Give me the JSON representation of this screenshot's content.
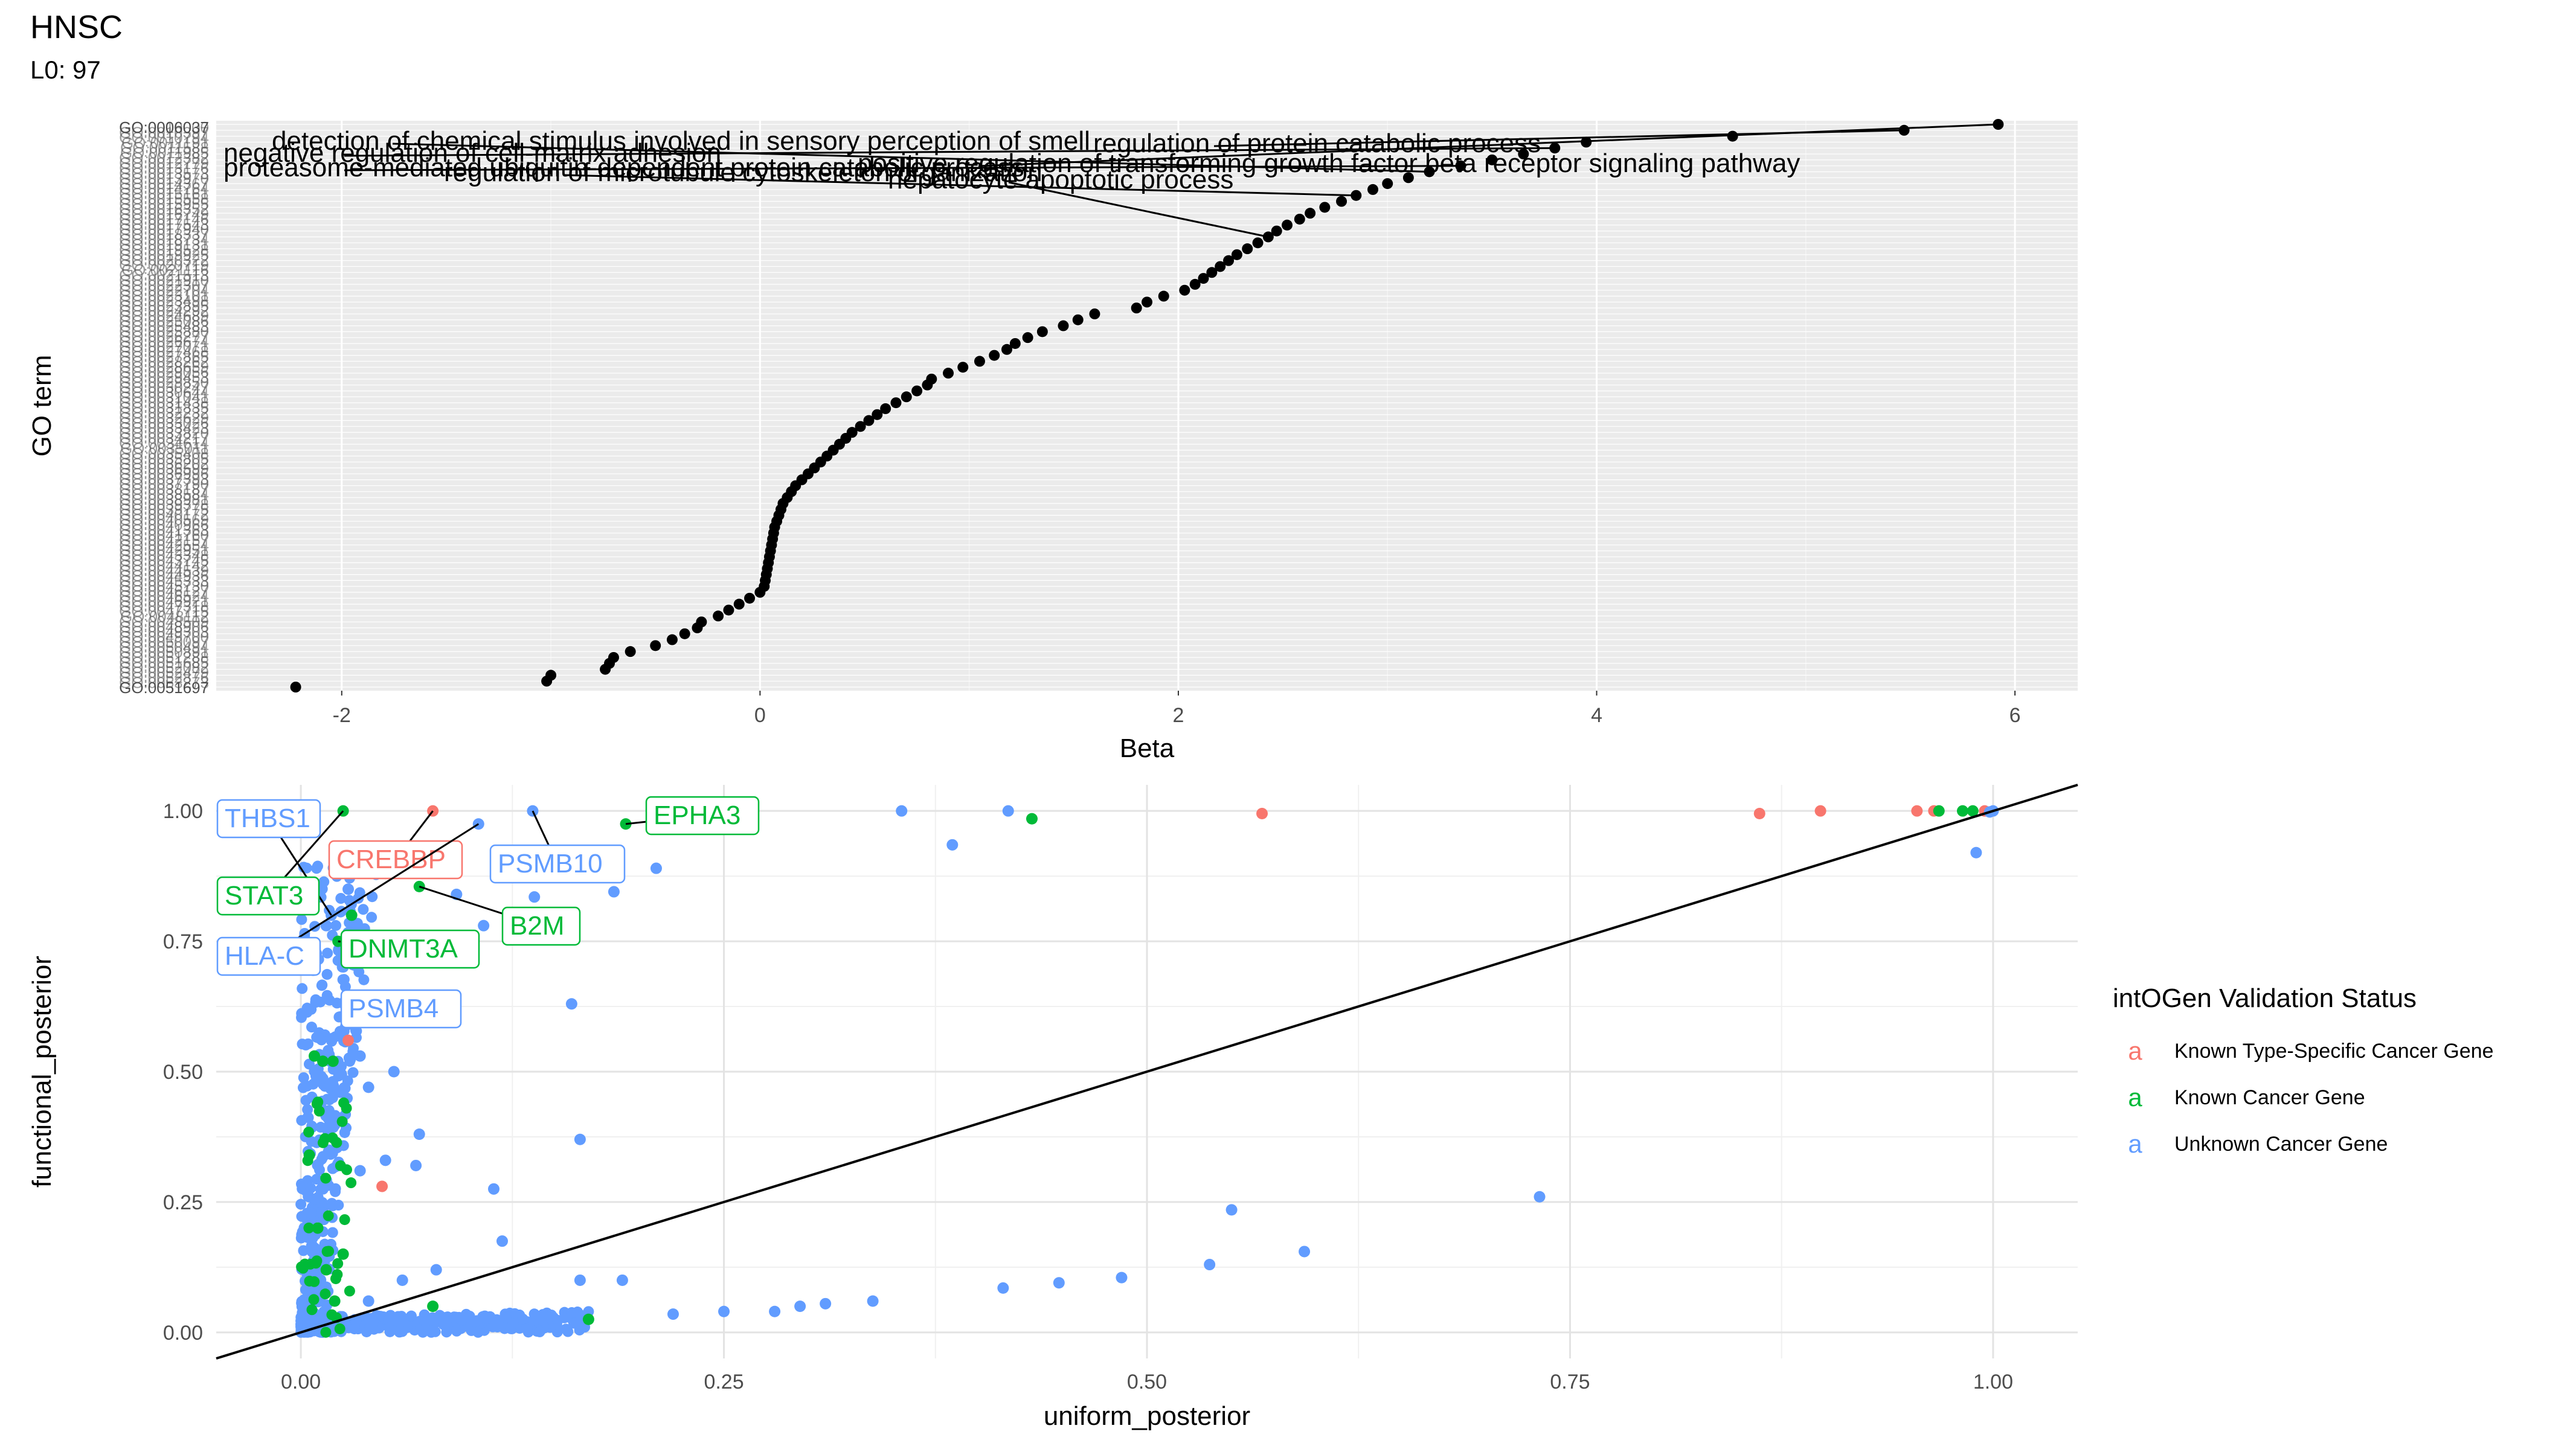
{
  "header": {
    "title": "HNSC",
    "subtitle": "L0: 97"
  },
  "chart_data": [
    {
      "type": "scatter",
      "name": "go-term-betas",
      "xlabel": "Beta",
      "ylabel": "GO term",
      "xlim": [
        -2.6,
        6.3
      ],
      "x_ticks": [
        -2,
        0,
        2,
        4,
        6
      ],
      "grid": true,
      "background": "#ebebeb",
      "point_color": "#000000",
      "y_tick_labels_note": "many overlapping GO:00xxxxx identifiers",
      "y_tick_label_first": "GO:0006037",
      "y_tick_label_last": "GO:0051697",
      "betas": [
        5.92,
        5.47,
        4.65,
        3.95,
        3.8,
        3.65,
        3.5,
        3.35,
        3.2,
        3.1,
        3.0,
        2.93,
        2.85,
        2.78,
        2.7,
        2.63,
        2.58,
        2.52,
        2.47,
        2.43,
        2.38,
        2.33,
        2.28,
        2.24,
        2.2,
        2.16,
        2.12,
        2.08,
        2.03,
        1.93,
        1.85,
        1.8,
        1.6,
        1.52,
        1.45,
        1.35,
        1.28,
        1.22,
        1.18,
        1.12,
        1.05,
        0.97,
        0.9,
        0.82,
        0.8,
        0.75,
        0.7,
        0.65,
        0.6,
        0.56,
        0.52,
        0.48,
        0.44,
        0.41,
        0.38,
        0.35,
        0.32,
        0.29,
        0.26,
        0.23,
        0.2,
        0.17,
        0.15,
        0.13,
        0.11,
        0.1,
        0.09,
        0.08,
        0.07,
        0.065,
        0.06,
        0.055,
        0.05,
        0.045,
        0.04,
        0.035,
        0.03,
        0.025,
        0.02,
        0.0,
        -0.05,
        -0.1,
        -0.15,
        -0.2,
        -0.28,
        -0.3,
        -0.36,
        -0.42,
        -0.5,
        -0.62,
        -0.7,
        -0.72,
        -0.74,
        -1.0,
        -1.02,
        -2.22
      ],
      "annotations": [
        "detection of chemical stimulus involved in sensory perception of smell",
        "regulation of protein catabolic process",
        "negative regulation of cell-matrix adhesion",
        "positive regulation of transforming growth factor beta receptor signaling pathway",
        "proteasome-mediated ubiquitin-dependent protein catabolic process",
        "regulation of microtubule cytoskeleton organization",
        "hepatocyte apoptotic process"
      ],
      "annotation_texts": [
        {
          "text": "detection of chemical stimulus involved in sensory perception of smell",
          "beta": 3.2
        },
        {
          "text": "regulation of protein catabolic process",
          "beta": 5.47
        },
        {
          "text": "negative regulation of cell-matrix adhesion",
          "beta": 3.8
        },
        {
          "text": "positive regulation of transforming growth factor beta receptor signaling pathway",
          "beta": 5.92
        },
        {
          "text": "proteasome-mediated ubiquitin-dependent protein catabolic process",
          "beta": 3.35
        },
        {
          "text": "regulation of microtubule cytoskeleton organization",
          "beta": 2.85
        },
        {
          "text": "hepatocyte apoptotic process",
          "beta": 2.43
        }
      ]
    },
    {
      "type": "scatter",
      "name": "posterior-comparison",
      "xlabel": "uniform_posterior",
      "ylabel": "functional_posterior",
      "xlim": [
        -0.05,
        1.05
      ],
      "ylim": [
        -0.05,
        1.05
      ],
      "x_ticks": [
        "0.00",
        "0.25",
        "0.50",
        "0.75",
        "1.00"
      ],
      "y_ticks": [
        "0.00",
        "0.25",
        "0.50",
        "0.75",
        "1.00"
      ],
      "grid": true,
      "reference_line": "y = x",
      "legend_position": "right",
      "legend": {
        "title": "intOGen Validation Status",
        "glyph": "a",
        "entries": [
          {
            "label": "Known Type-Specific Cancer Gene",
            "color": "#f8766d"
          },
          {
            "label": "Known Cancer Gene",
            "color": "#00ba38"
          },
          {
            "label": "Unknown Cancer Gene",
            "color": "#619cff"
          }
        ]
      },
      "status_colors": {
        "type_specific": "#f8766d",
        "known": "#00ba38",
        "unknown": "#619cff"
      },
      "points": [
        {
          "x": 0.025,
          "y": 1.0,
          "status": "known"
        },
        {
          "x": 0.078,
          "y": 1.0,
          "status": "type_specific"
        },
        {
          "x": 0.105,
          "y": 0.975,
          "status": "unknown"
        },
        {
          "x": 0.137,
          "y": 1.0,
          "status": "unknown"
        },
        {
          "x": 0.192,
          "y": 0.975,
          "status": "known"
        },
        {
          "x": 0.355,
          "y": 1.0,
          "status": "unknown"
        },
        {
          "x": 0.418,
          "y": 1.0,
          "status": "unknown"
        },
        {
          "x": 0.432,
          "y": 0.985,
          "status": "known"
        },
        {
          "x": 0.385,
          "y": 0.935,
          "status": "unknown"
        },
        {
          "x": 0.568,
          "y": 0.995,
          "status": "type_specific"
        },
        {
          "x": 0.862,
          "y": 0.995,
          "status": "type_specific"
        },
        {
          "x": 0.898,
          "y": 1.0,
          "status": "type_specific"
        },
        {
          "x": 0.955,
          "y": 1.0,
          "status": "type_specific"
        },
        {
          "x": 0.965,
          "y": 1.0,
          "status": "type_specific"
        },
        {
          "x": 0.968,
          "y": 1.0,
          "status": "known"
        },
        {
          "x": 0.982,
          "y": 1.0,
          "status": "known"
        },
        {
          "x": 0.988,
          "y": 1.0,
          "status": "known"
        },
        {
          "x": 0.99,
          "y": 0.92,
          "status": "unknown"
        },
        {
          "x": 0.995,
          "y": 1.0,
          "status": "type_specific"
        },
        {
          "x": 1.0,
          "y": 1.0,
          "status": "unknown"
        },
        {
          "x": 0.998,
          "y": 0.998,
          "status": "unknown"
        },
        {
          "x": 0.21,
          "y": 0.89,
          "status": "unknown"
        },
        {
          "x": 0.188,
          "y": 0.88,
          "status": "unknown"
        },
        {
          "x": 0.185,
          "y": 0.845,
          "status": "unknown"
        },
        {
          "x": 0.07,
          "y": 0.855,
          "status": "known"
        },
        {
          "x": 0.138,
          "y": 0.835,
          "status": "unknown"
        },
        {
          "x": 0.108,
          "y": 0.78,
          "status": "unknown"
        },
        {
          "x": 0.092,
          "y": 0.84,
          "status": "unknown"
        },
        {
          "x": 0.028,
          "y": 0.85,
          "status": "unknown"
        },
        {
          "x": 0.03,
          "y": 0.8,
          "status": "known"
        },
        {
          "x": 0.022,
          "y": 0.75,
          "status": "known"
        },
        {
          "x": 0.018,
          "y": 0.8,
          "status": "unknown"
        },
        {
          "x": 0.015,
          "y": 0.78,
          "status": "unknown"
        },
        {
          "x": 0.16,
          "y": 0.63,
          "status": "unknown"
        },
        {
          "x": 0.045,
          "y": 0.62,
          "status": "unknown"
        },
        {
          "x": 0.055,
          "y": 0.6,
          "status": "unknown"
        },
        {
          "x": 0.028,
          "y": 0.56,
          "status": "type_specific"
        },
        {
          "x": 0.035,
          "y": 0.53,
          "status": "unknown"
        },
        {
          "x": 0.055,
          "y": 0.5,
          "status": "unknown"
        },
        {
          "x": 0.04,
          "y": 0.47,
          "status": "unknown"
        },
        {
          "x": 0.013,
          "y": 0.52,
          "status": "known"
        },
        {
          "x": 0.019,
          "y": 0.52,
          "status": "known"
        },
        {
          "x": 0.008,
          "y": 0.53,
          "status": "known"
        },
        {
          "x": 0.165,
          "y": 0.37,
          "status": "unknown"
        },
        {
          "x": 0.07,
          "y": 0.38,
          "status": "unknown"
        },
        {
          "x": 0.05,
          "y": 0.33,
          "status": "unknown"
        },
        {
          "x": 0.068,
          "y": 0.32,
          "status": "unknown"
        },
        {
          "x": 0.048,
          "y": 0.28,
          "status": "type_specific"
        },
        {
          "x": 0.114,
          "y": 0.275,
          "status": "unknown"
        },
        {
          "x": 0.035,
          "y": 0.31,
          "status": "unknown"
        },
        {
          "x": 0.005,
          "y": 0.34,
          "status": "known"
        },
        {
          "x": 0.119,
          "y": 0.175,
          "status": "unknown"
        },
        {
          "x": 0.165,
          "y": 0.1,
          "status": "unknown"
        },
        {
          "x": 0.19,
          "y": 0.1,
          "status": "unknown"
        },
        {
          "x": 0.08,
          "y": 0.12,
          "status": "unknown"
        },
        {
          "x": 0.06,
          "y": 0.1,
          "status": "unknown"
        },
        {
          "x": 0.04,
          "y": 0.06,
          "status": "unknown"
        },
        {
          "x": 0.078,
          "y": 0.05,
          "status": "known"
        },
        {
          "x": 0.02,
          "y": 0.06,
          "status": "known"
        },
        {
          "x": 0.015,
          "y": 0.12,
          "status": "known"
        },
        {
          "x": 0.01,
          "y": 0.2,
          "status": "known"
        },
        {
          "x": 0.025,
          "y": 0.15,
          "status": "known"
        },
        {
          "x": 0.17,
          "y": 0.025,
          "status": "known"
        },
        {
          "x": 0.22,
          "y": 0.035,
          "status": "unknown"
        },
        {
          "x": 0.25,
          "y": 0.04,
          "status": "unknown"
        },
        {
          "x": 0.28,
          "y": 0.04,
          "status": "unknown"
        },
        {
          "x": 0.295,
          "y": 0.05,
          "status": "unknown"
        },
        {
          "x": 0.31,
          "y": 0.055,
          "status": "unknown"
        },
        {
          "x": 0.338,
          "y": 0.06,
          "status": "unknown"
        },
        {
          "x": 0.415,
          "y": 0.085,
          "status": "unknown"
        },
        {
          "x": 0.448,
          "y": 0.095,
          "status": "unknown"
        },
        {
          "x": 0.485,
          "y": 0.105,
          "status": "unknown"
        },
        {
          "x": 0.537,
          "y": 0.13,
          "status": "unknown"
        },
        {
          "x": 0.55,
          "y": 0.235,
          "status": "unknown"
        },
        {
          "x": 0.593,
          "y": 0.155,
          "status": "unknown"
        },
        {
          "x": 0.732,
          "y": 0.26,
          "status": "unknown"
        }
      ],
      "dense_region_note": "hundreds of unknown-status points clustered along x≈0.00–0.04 (y from 0 to 0.9) and along y≈0.00–0.04 (x from 0 to 0.17)",
      "labeled_genes": [
        {
          "label": "THBS1",
          "status": "unknown",
          "x": 0.018,
          "y": 0.8
        },
        {
          "label": "CREBBP",
          "status": "type_specific",
          "x": 0.078,
          "y": 1.0
        },
        {
          "label": "PSMB10",
          "status": "unknown",
          "x": 0.137,
          "y": 1.0
        },
        {
          "label": "EPHA3",
          "status": "known",
          "x": 0.192,
          "y": 0.975
        },
        {
          "label": "STAT3",
          "status": "known",
          "x": 0.025,
          "y": 1.0
        },
        {
          "label": "B2M",
          "status": "known",
          "x": 0.07,
          "y": 0.855
        },
        {
          "label": "HLA-C",
          "status": "unknown",
          "x": 0.105,
          "y": 0.975
        },
        {
          "label": "DNMT3A",
          "status": "known",
          "x": 0.022,
          "y": 0.75
        },
        {
          "label": "PSMB4",
          "status": "unknown",
          "x": 0.045,
          "y": 0.62
        }
      ]
    }
  ]
}
